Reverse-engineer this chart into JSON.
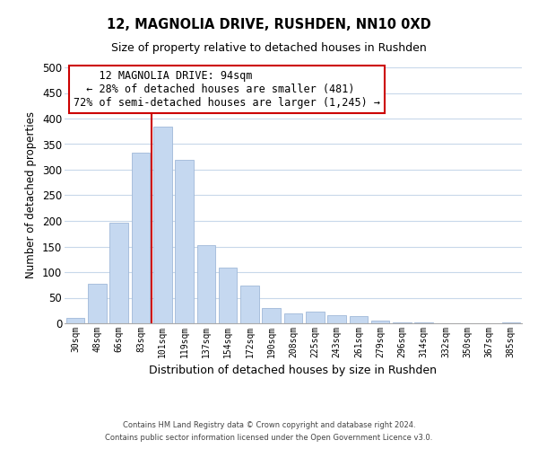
{
  "title1": "12, MAGNOLIA DRIVE, RUSHDEN, NN10 0XD",
  "title2": "Size of property relative to detached houses in Rushden",
  "xlabel": "Distribution of detached houses by size in Rushden",
  "ylabel": "Number of detached properties",
  "bar_labels": [
    "30sqm",
    "48sqm",
    "66sqm",
    "83sqm",
    "101sqm",
    "119sqm",
    "137sqm",
    "154sqm",
    "172sqm",
    "190sqm",
    "208sqm",
    "225sqm",
    "243sqm",
    "261sqm",
    "279sqm",
    "296sqm",
    "314sqm",
    "332sqm",
    "350sqm",
    "367sqm",
    "385sqm"
  ],
  "bar_values": [
    10,
    78,
    197,
    333,
    385,
    320,
    152,
    108,
    73,
    30,
    20,
    23,
    15,
    14,
    5,
    2,
    1,
    0,
    0,
    0,
    1
  ],
  "bar_color": "#c5d8f0",
  "bar_edge_color": "#a0b8d8",
  "red_line_x": 3.5,
  "annotation_title": "12 MAGNOLIA DRIVE: 94sqm",
  "annotation_line1": "← 28% of detached houses are smaller (481)",
  "annotation_line2": "72% of semi-detached houses are larger (1,245) →",
  "annotation_box_color": "#ffffff",
  "annotation_box_edge": "#cc0000",
  "red_line_color": "#cc0000",
  "ylim": [
    0,
    500
  ],
  "yticks": [
    0,
    50,
    100,
    150,
    200,
    250,
    300,
    350,
    400,
    450,
    500
  ],
  "footer1": "Contains HM Land Registry data © Crown copyright and database right 2024.",
  "footer2": "Contains public sector information licensed under the Open Government Licence v3.0.",
  "bg_color": "#ffffff",
  "grid_color": "#c8d8ea"
}
